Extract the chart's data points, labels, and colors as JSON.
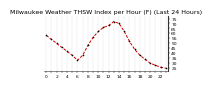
{
  "title": "Milwaukee Weather THSW Index per Hour (F) (Last 24 Hours)",
  "hours": [
    0,
    1,
    2,
    3,
    4,
    5,
    6,
    7,
    8,
    9,
    10,
    11,
    12,
    13,
    14,
    15,
    16,
    17,
    18,
    19,
    20,
    21,
    22,
    23
  ],
  "values": [
    58,
    54,
    50,
    46,
    42,
    38,
    33,
    38,
    48,
    56,
    62,
    66,
    68,
    72,
    70,
    62,
    52,
    44,
    38,
    34,
    30,
    28,
    26,
    25
  ],
  "line_color": "#cc0000",
  "marker_color": "#000000",
  "bg_color": "#ffffff",
  "grid_color": "#bbbbbb",
  "ylim": [
    22,
    78
  ],
  "ytick_step": 5,
  "title_fontsize": 4.5,
  "tick_fontsize": 3.2,
  "line_width": 0.7,
  "marker_size": 1.8
}
